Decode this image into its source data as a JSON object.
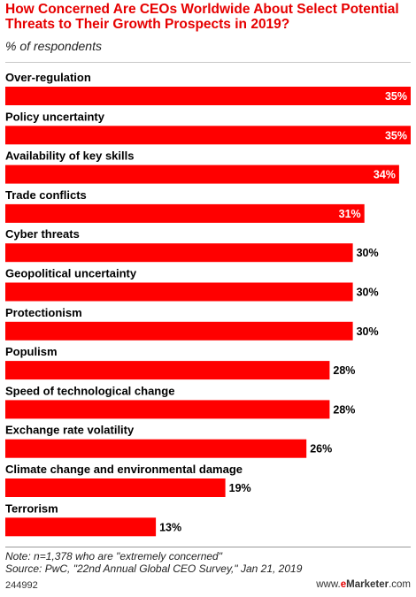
{
  "chart_data": {
    "type": "bar",
    "orientation": "horizontal",
    "title": "How Concerned Are CEOs Worldwide About Select Potential Threats to Their Growth Prospects in 2019?",
    "subtitle": "% of respondents",
    "categories": [
      "Over-regulation",
      "Policy uncertainty",
      "Availability of key skills",
      "Trade conflicts",
      "Cyber threats",
      "Geopolitical uncertainty",
      "Protectionism",
      "Populism",
      "Speed of technological change",
      "Exchange rate volatility",
      "Climate change and environmental damage",
      "Terrorism"
    ],
    "values": [
      35,
      35,
      34,
      31,
      30,
      30,
      30,
      28,
      28,
      26,
      19,
      13
    ],
    "value_labels": [
      "35%",
      "35%",
      "34%",
      "31%",
      "30%",
      "30%",
      "30%",
      "28%",
      "28%",
      "26%",
      "19%",
      "13%"
    ],
    "xlim": [
      0,
      35
    ],
    "grid": false,
    "bar_color": "#ff0000"
  },
  "note": "Note: n=1,378 who are \"extremely concerned\"",
  "source": "Source: PwC, \"22nd Annual Global CEO Survey,\" Jan 21, 2019",
  "chart_id": "244992",
  "brand": {
    "prefix": "www.",
    "highlight": "e",
    "name": "Marketer",
    "suffix": ".com"
  }
}
